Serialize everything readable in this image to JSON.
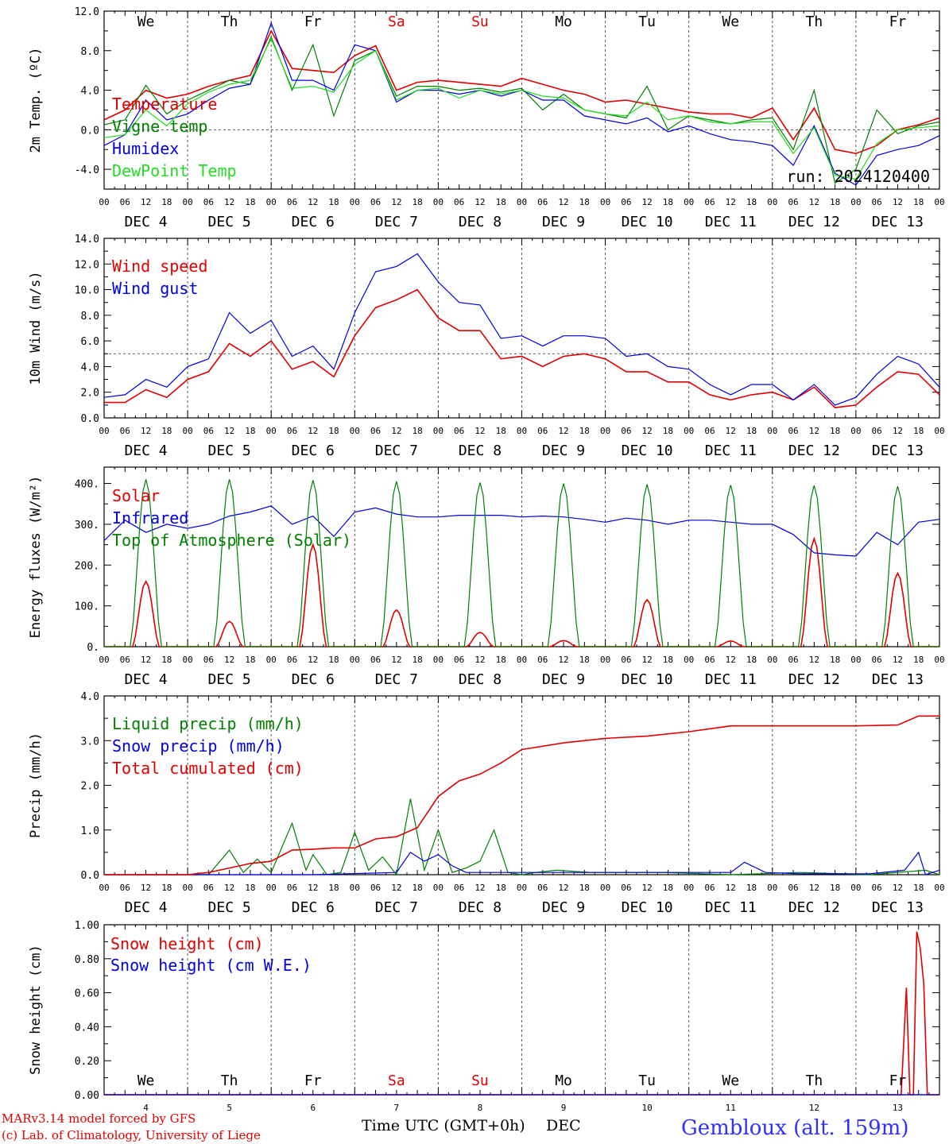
{
  "colors": {
    "red": "#e00000",
    "green": "#008000",
    "blue": "#0000e0",
    "lightgreen": "#22dd22",
    "weekend": "#e00000",
    "station": "#3030ff"
  },
  "days": [
    "We",
    "Th",
    "Fr",
    "Sa",
    "Su",
    "Mo",
    "Tu",
    "We",
    "Th",
    "Fr"
  ],
  "weekend_days": [
    "Sa",
    "Su"
  ],
  "dates": [
    "DEC 4",
    "DEC 5",
    "DEC 6",
    "DEC 7",
    "DEC 8",
    "DEC 9",
    "DEC 10",
    "DEC 11",
    "DEC 12",
    "DEC 13"
  ],
  "bottom_dates": [
    "4",
    "5",
    "6",
    "7",
    "8",
    "9",
    "10",
    "11",
    "12",
    "13"
  ],
  "hour_ticks": [
    "00",
    "06",
    "12",
    "18"
  ],
  "run_label": "run: 2024120400",
  "footer": {
    "model": "MARv3.14 model forced by GFS",
    "credit": "(c) Lab. of Climatology, University of Liege",
    "xlabel": "Time UTC (GMT+0h)",
    "xunit": "DEC",
    "station": "Gembloux (alt. 159m)"
  },
  "chart_data": [
    {
      "type": "line",
      "ylabel": "2m Temp. (ºC)",
      "ylim": [
        -6,
        12
      ],
      "ytick_values": [
        -4,
        0,
        4,
        8,
        12
      ],
      "ytick_labels": [
        "-4.0",
        "0.0",
        "4.0",
        "8.0",
        "12.0"
      ],
      "hline": 0,
      "x_unit": "hours since DEC 4 00 UTC",
      "series": [
        {
          "name": "Temperature",
          "color": "red",
          "x": [
            0,
            6,
            12,
            18,
            24,
            30,
            36,
            42,
            48,
            54,
            60,
            66,
            72,
            78,
            84,
            90,
            96,
            102,
            108,
            114,
            120,
            126,
            132,
            138,
            144,
            150,
            156,
            162,
            168,
            174,
            180,
            186,
            192,
            198,
            204,
            210,
            216,
            222,
            228,
            234,
            240
          ],
          "y": [
            1.0,
            2.0,
            4.0,
            3.2,
            3.6,
            4.4,
            5.0,
            5.5,
            10.0,
            6.2,
            6.0,
            5.8,
            7.5,
            8.5,
            4.0,
            4.8,
            5.0,
            4.8,
            4.6,
            4.4,
            5.2,
            4.6,
            4.0,
            3.6,
            2.8,
            3.0,
            2.6,
            2.2,
            1.8,
            1.6,
            1.6,
            1.2,
            2.2,
            -1.0,
            2.2,
            -2.0,
            -2.4,
            -1.6,
            0.0,
            0.5,
            1.2
          ]
        },
        {
          "name": "Vigne temp",
          "color": "green",
          "x": [
            0,
            6,
            12,
            18,
            24,
            30,
            36,
            42,
            48,
            54,
            60,
            66,
            72,
            78,
            84,
            90,
            96,
            102,
            108,
            114,
            120,
            126,
            132,
            138,
            144,
            150,
            156,
            162,
            168,
            174,
            180,
            186,
            192,
            198,
            204,
            210,
            216,
            222,
            228,
            234,
            240
          ],
          "y": [
            0.5,
            1.0,
            4.5,
            1.6,
            3.0,
            4.0,
            5.0,
            4.6,
            9.4,
            4.0,
            8.6,
            1.4,
            7.0,
            8.0,
            3.4,
            4.4,
            4.4,
            4.0,
            4.2,
            3.8,
            4.2,
            2.0,
            3.6,
            2.0,
            1.6,
            1.2,
            4.4,
            0.0,
            1.4,
            1.0,
            0.6,
            1.0,
            1.2,
            -2.0,
            4.0,
            -5.4,
            -4.0,
            2.0,
            -0.4,
            0.4,
            0.8
          ]
        },
        {
          "name": "Humidex",
          "color": "blue",
          "x": [
            0,
            6,
            12,
            18,
            24,
            30,
            36,
            42,
            48,
            54,
            60,
            66,
            72,
            78,
            84,
            90,
            96,
            102,
            108,
            114,
            120,
            126,
            132,
            138,
            144,
            150,
            156,
            162,
            168,
            174,
            180,
            186,
            192,
            198,
            204,
            210,
            216,
            222,
            228,
            234,
            240
          ],
          "y": [
            -1.6,
            -0.5,
            3.0,
            1.0,
            1.6,
            3.0,
            4.2,
            4.6,
            10.8,
            5.0,
            5.0,
            4.0,
            8.6,
            8.0,
            2.8,
            4.0,
            4.0,
            3.6,
            4.0,
            3.4,
            4.0,
            3.0,
            3.0,
            1.4,
            1.0,
            0.6,
            1.2,
            -0.2,
            0.4,
            -0.4,
            -1.0,
            -1.2,
            -1.6,
            -3.6,
            0.4,
            -4.4,
            -5.6,
            -2.6,
            -2.0,
            -1.6,
            -0.6
          ]
        },
        {
          "name": "DewPoint Temp",
          "color": "lightgreen",
          "x": [
            0,
            6,
            12,
            18,
            24,
            30,
            36,
            42,
            48,
            54,
            60,
            66,
            72,
            78,
            84,
            90,
            96,
            102,
            108,
            114,
            120,
            126,
            132,
            138,
            144,
            150,
            156,
            162,
            168,
            174,
            180,
            186,
            192,
            198,
            204,
            210,
            216,
            222,
            228,
            234,
            240
          ],
          "y": [
            -0.8,
            -0.5,
            2.0,
            0.4,
            2.6,
            3.8,
            4.6,
            5.0,
            9.2,
            4.2,
            4.4,
            3.8,
            6.6,
            8.0,
            3.0,
            4.0,
            4.2,
            3.2,
            4.0,
            3.6,
            4.0,
            3.4,
            3.2,
            2.0,
            1.6,
            1.4,
            2.8,
            1.0,
            1.4,
            0.8,
            0.6,
            0.8,
            0.8,
            -2.4,
            0.2,
            -4.6,
            -5.0,
            -1.4,
            0.0,
            0.2,
            0.4
          ]
        }
      ]
    },
    {
      "type": "line",
      "ylabel": "10m Wind (m/s)",
      "ylim": [
        0,
        14
      ],
      "ytick_values": [
        0,
        2,
        4,
        6,
        8,
        10,
        12,
        14
      ],
      "ytick_labels": [
        "0.0",
        "2.0",
        "4.0",
        "6.0",
        "8.0",
        "10.0",
        "12.0",
        "14.0"
      ],
      "hline": 5,
      "x_unit": "hours since DEC 4 00 UTC",
      "series": [
        {
          "name": "Wind speed",
          "color": "red",
          "x": [
            0,
            6,
            12,
            18,
            24,
            30,
            36,
            42,
            48,
            54,
            60,
            66,
            72,
            78,
            84,
            90,
            96,
            102,
            108,
            114,
            120,
            126,
            132,
            138,
            144,
            150,
            156,
            162,
            168,
            174,
            180,
            186,
            192,
            198,
            204,
            210,
            216,
            222,
            228,
            234,
            240
          ],
          "y": [
            1.2,
            1.2,
            2.2,
            1.6,
            3.0,
            3.6,
            5.8,
            4.8,
            6.0,
            3.8,
            4.4,
            3.2,
            6.4,
            8.6,
            9.2,
            10.0,
            7.8,
            6.8,
            6.8,
            4.6,
            4.8,
            4.0,
            4.8,
            5.0,
            4.6,
            3.6,
            3.6,
            2.8,
            2.8,
            1.8,
            1.4,
            1.8,
            2.0,
            1.4,
            2.4,
            0.8,
            1.0,
            2.4,
            3.6,
            3.4,
            1.8
          ]
        },
        {
          "name": "Wind gust",
          "color": "blue",
          "x": [
            0,
            6,
            12,
            18,
            24,
            30,
            36,
            42,
            48,
            54,
            60,
            66,
            72,
            78,
            84,
            90,
            96,
            102,
            108,
            114,
            120,
            126,
            132,
            138,
            144,
            150,
            156,
            162,
            168,
            174,
            180,
            186,
            192,
            198,
            204,
            210,
            216,
            222,
            228,
            234,
            240
          ],
          "y": [
            1.6,
            1.8,
            3.0,
            2.4,
            4.0,
            4.6,
            8.2,
            6.6,
            7.6,
            4.8,
            5.6,
            3.8,
            8.2,
            11.4,
            11.8,
            12.8,
            10.6,
            9.0,
            8.8,
            6.2,
            6.4,
            5.6,
            6.4,
            6.4,
            6.2,
            4.8,
            5.0,
            4.0,
            3.8,
            2.6,
            1.8,
            2.6,
            2.6,
            1.4,
            2.6,
            1.0,
            1.6,
            3.4,
            4.8,
            4.2,
            2.4
          ]
        }
      ]
    },
    {
      "type": "line",
      "ylabel": "Energy fluxes (W/m²)",
      "ylim": [
        0,
        440
      ],
      "ytick_values": [
        0,
        100,
        200,
        300,
        400
      ],
      "ytick_labels": [
        "0.",
        "100.",
        "200.",
        "300.",
        "400."
      ],
      "x_unit": "hours since DEC 4 00 UTC",
      "series": [
        {
          "name": "Solar",
          "color": "red",
          "peaks": [
            [
              12,
              160
            ],
            [
              36,
              62
            ],
            [
              60,
              250
            ],
            [
              84,
              90
            ],
            [
              108,
              35
            ],
            [
              132,
              15
            ],
            [
              156,
              115
            ],
            [
              180,
              14
            ],
            [
              204,
              265
            ],
            [
              228,
              180
            ]
          ]
        },
        {
          "name": "Infrared",
          "color": "blue",
          "x": [
            0,
            6,
            12,
            18,
            24,
            30,
            36,
            42,
            48,
            54,
            60,
            66,
            72,
            78,
            84,
            90,
            96,
            102,
            108,
            114,
            120,
            126,
            132,
            138,
            144,
            150,
            156,
            162,
            168,
            174,
            180,
            186,
            192,
            198,
            204,
            210,
            216,
            222,
            228,
            234,
            240
          ],
          "y": [
            260,
            310,
            280,
            300,
            290,
            300,
            320,
            330,
            345,
            300,
            320,
            270,
            330,
            340,
            325,
            318,
            318,
            322,
            322,
            322,
            318,
            320,
            318,
            312,
            305,
            315,
            310,
            300,
            310,
            310,
            305,
            300,
            300,
            275,
            230,
            225,
            222,
            280,
            250,
            305,
            312
          ]
        },
        {
          "name": "Top of Atmosphere (Solar)",
          "color": "green",
          "peaks": [
            [
              12,
              410
            ],
            [
              36,
              410
            ],
            [
              60,
              408
            ],
            [
              84,
              405
            ],
            [
              108,
              402
            ],
            [
              132,
              400
            ],
            [
              156,
              398
            ],
            [
              180,
              396
            ],
            [
              204,
              395
            ],
            [
              228,
              393
            ]
          ]
        }
      ]
    },
    {
      "type": "line",
      "ylabel": "Precip (mm/h)",
      "ylim": [
        0,
        4
      ],
      "ytick_values": [
        0,
        1,
        2,
        3,
        4
      ],
      "ytick_labels": [
        "0.0",
        "1.0",
        "2.0",
        "3.0",
        "4.0"
      ],
      "x_unit": "hours since DEC 4 00 UTC",
      "series": [
        {
          "name": "Liquid precip (mm/h)",
          "color": "green",
          "x": [
            0,
            30,
            36,
            40,
            44,
            48,
            54,
            58,
            60,
            64,
            68,
            72,
            76,
            80,
            84,
            88,
            92,
            96,
            100,
            104,
            108,
            112,
            116,
            120,
            124,
            130,
            140,
            160,
            180,
            200,
            220,
            236,
            240
          ],
          "y": [
            0,
            0,
            0.55,
            0.05,
            0.35,
            0.05,
            1.15,
            0.1,
            0.45,
            0.0,
            0.05,
            0.95,
            0.1,
            0.4,
            0,
            1.7,
            0.1,
            1.0,
            0.05,
            0.15,
            0.3,
            1.0,
            0.05,
            0,
            0.05,
            0.1,
            0.05,
            0.05,
            0,
            0.05,
            0,
            0.1,
            0
          ]
        },
        {
          "name": "Snow precip (mm/h)",
          "color": "blue",
          "x": [
            0,
            60,
            84,
            88,
            92,
            96,
            100,
            104,
            108,
            120,
            150,
            180,
            184,
            190,
            200,
            220,
            230,
            234,
            236,
            240
          ],
          "y": [
            0,
            0,
            0.05,
            0.5,
            0.3,
            0.45,
            0.2,
            0.05,
            0.05,
            0.05,
            0.05,
            0.05,
            0.28,
            0.05,
            0.02,
            0.02,
            0.1,
            0.5,
            0.0,
            0.1
          ]
        },
        {
          "name": "Total cumulated (cm)",
          "color": "red",
          "x": [
            0,
            24,
            30,
            36,
            42,
            48,
            54,
            60,
            66,
            72,
            78,
            84,
            90,
            96,
            102,
            108,
            114,
            120,
            132,
            144,
            156,
            168,
            180,
            192,
            204,
            216,
            228,
            234,
            240
          ],
          "y": [
            0,
            0,
            0.05,
            0.15,
            0.25,
            0.3,
            0.55,
            0.57,
            0.6,
            0.6,
            0.8,
            0.85,
            1.05,
            1.75,
            2.1,
            2.25,
            2.5,
            2.8,
            2.95,
            3.05,
            3.1,
            3.2,
            3.33,
            3.33,
            3.33,
            3.33,
            3.35,
            3.55,
            3.55
          ]
        }
      ]
    },
    {
      "type": "line",
      "ylabel": "Snow height (cm)",
      "ylim": [
        0,
        1.0
      ],
      "ytick_values": [
        0,
        0.2,
        0.4,
        0.6,
        0.8,
        1.0
      ],
      "ytick_labels": [
        "0.00",
        "0.20",
        "0.40",
        "0.60",
        "0.80",
        "1.00"
      ],
      "x_unit": "hours since DEC 4 00 UTC",
      "series": [
        {
          "name": "Snow height (cm)",
          "color": "red",
          "x": [
            0,
            229,
            230.5,
            231.5,
            232.5,
            233.5,
            234.5,
            235.5,
            236.5,
            237.5,
            240
          ],
          "y": [
            0,
            0,
            0.63,
            0,
            0,
            0.96,
            0.86,
            0.65,
            0,
            0,
            0
          ]
        },
        {
          "name": "Snow height (cm W.E.)",
          "color": "blue",
          "x": [
            0,
            240
          ],
          "y": [
            0,
            0
          ]
        }
      ]
    }
  ]
}
